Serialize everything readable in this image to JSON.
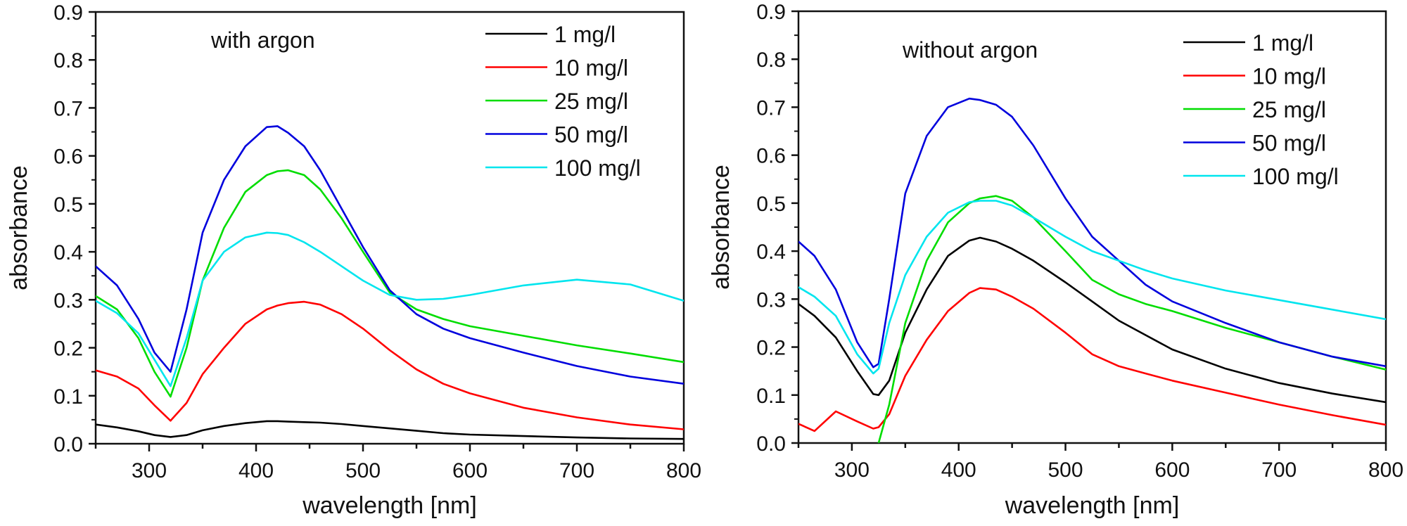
{
  "chart_data": [
    {
      "type": "line",
      "title": "",
      "annotation": "with argon",
      "xlabel": "wavelength [nm]",
      "ylabel": "absorbance",
      "xlim": [
        250,
        800
      ],
      "ylim": [
        0.0,
        0.9
      ],
      "xticks": [
        300,
        400,
        500,
        600,
        700,
        800
      ],
      "xtick_labels": [
        "300",
        "400",
        "500",
        "600",
        "700",
        "800"
      ],
      "yticks": [
        0.0,
        0.1,
        0.2,
        0.3,
        0.4,
        0.5,
        0.6,
        0.7,
        0.8,
        0.9
      ],
      "ytick_labels": [
        "0.0",
        "0.1",
        "0.2",
        "0.3",
        "0.4",
        "0.5",
        "0.6",
        "0.7",
        "0.8",
        "0.9"
      ],
      "grid": false,
      "legend_position": "top-right",
      "x": [
        250,
        270,
        290,
        305,
        320,
        335,
        350,
        370,
        390,
        410,
        420,
        430,
        445,
        460,
        480,
        500,
        525,
        550,
        575,
        600,
        650,
        700,
        750,
        800
      ],
      "series": [
        {
          "name": "1 mg/l",
          "color": "#000000",
          "values": [
            0.04,
            0.034,
            0.026,
            0.018,
            0.014,
            0.018,
            0.028,
            0.037,
            0.043,
            0.047,
            0.047,
            0.046,
            0.045,
            0.044,
            0.041,
            0.037,
            0.032,
            0.027,
            0.022,
            0.019,
            0.016,
            0.013,
            0.011,
            0.01
          ]
        },
        {
          "name": "10 mg/l",
          "color": "#ff0000",
          "values": [
            0.153,
            0.14,
            0.115,
            0.08,
            0.048,
            0.085,
            0.145,
            0.2,
            0.25,
            0.28,
            0.288,
            0.293,
            0.296,
            0.29,
            0.27,
            0.24,
            0.195,
            0.155,
            0.125,
            0.105,
            0.075,
            0.055,
            0.04,
            0.03
          ]
        },
        {
          "name": "25 mg/l",
          "color": "#00dd00",
          "values": [
            0.308,
            0.28,
            0.22,
            0.15,
            0.098,
            0.2,
            0.34,
            0.45,
            0.525,
            0.56,
            0.568,
            0.57,
            0.56,
            0.53,
            0.47,
            0.4,
            0.315,
            0.28,
            0.26,
            0.245,
            0.225,
            0.205,
            0.188,
            0.17
          ]
        },
        {
          "name": "50 mg/l",
          "color": "#0000dd",
          "values": [
            0.37,
            0.33,
            0.26,
            0.19,
            0.15,
            0.28,
            0.44,
            0.55,
            0.62,
            0.66,
            0.662,
            0.648,
            0.62,
            0.57,
            0.49,
            0.41,
            0.32,
            0.27,
            0.24,
            0.22,
            0.19,
            0.162,
            0.14,
            0.125
          ]
        },
        {
          "name": "100 mg/l",
          "color": "#00e5ee",
          "values": [
            0.298,
            0.272,
            0.23,
            0.175,
            0.12,
            0.22,
            0.34,
            0.4,
            0.43,
            0.44,
            0.439,
            0.435,
            0.42,
            0.4,
            0.37,
            0.34,
            0.31,
            0.3,
            0.302,
            0.31,
            0.33,
            0.342,
            0.332,
            0.298
          ]
        }
      ]
    },
    {
      "type": "line",
      "title": "",
      "annotation": "without argon",
      "xlabel": "wavelength [nm]",
      "ylabel": "absorbance",
      "xlim": [
        250,
        800
      ],
      "ylim": [
        0.0,
        0.9
      ],
      "xticks": [
        300,
        400,
        500,
        600,
        700,
        800
      ],
      "xtick_labels": [
        "300",
        "400",
        "500",
        "600",
        "700",
        "800"
      ],
      "yticks": [
        0.0,
        0.1,
        0.2,
        0.3,
        0.4,
        0.5,
        0.6,
        0.7,
        0.8,
        0.9
      ],
      "ytick_labels": [
        "0.0",
        "0.1",
        "0.2",
        "0.3",
        "0.4",
        "0.5",
        "0.6",
        "0.7",
        "0.8",
        "0.9"
      ],
      "grid": false,
      "legend_position": "top-right",
      "x": [
        250,
        265,
        285,
        305,
        320,
        325,
        335,
        350,
        370,
        390,
        410,
        420,
        435,
        450,
        470,
        500,
        525,
        550,
        575,
        600,
        650,
        700,
        750,
        800
      ],
      "series": [
        {
          "name": "1 mg/l",
          "color": "#000000",
          "values": [
            0.29,
            0.265,
            0.22,
            0.15,
            0.102,
            0.1,
            0.13,
            0.23,
            0.32,
            0.39,
            0.422,
            0.428,
            0.42,
            0.405,
            0.38,
            0.335,
            0.295,
            0.255,
            0.225,
            0.195,
            0.155,
            0.125,
            0.103,
            0.085
          ]
        },
        {
          "name": "10 mg/l",
          "color": "#ff0000",
          "values": [
            0.04,
            0.025,
            0.066,
            0.045,
            0.03,
            0.033,
            0.06,
            0.14,
            0.215,
            0.275,
            0.313,
            0.323,
            0.32,
            0.305,
            0.28,
            0.23,
            0.185,
            0.16,
            0.145,
            0.13,
            0.105,
            0.08,
            0.058,
            0.038
          ]
        },
        {
          "name": "25 mg/l",
          "color": "#00dd00",
          "values": [
            null,
            null,
            null,
            null,
            null,
            0.0,
            0.08,
            0.25,
            0.38,
            0.46,
            0.5,
            0.51,
            0.515,
            0.505,
            0.47,
            0.4,
            0.34,
            0.31,
            0.29,
            0.275,
            0.24,
            0.21,
            0.18,
            0.153
          ]
        },
        {
          "name": "50 mg/l",
          "color": "#0000dd",
          "values": [
            0.42,
            0.39,
            0.32,
            0.21,
            0.158,
            0.165,
            0.3,
            0.52,
            0.64,
            0.7,
            0.718,
            0.715,
            0.705,
            0.68,
            0.62,
            0.51,
            0.43,
            0.38,
            0.33,
            0.295,
            0.25,
            0.21,
            0.18,
            0.16
          ]
        },
        {
          "name": "100 mg/l",
          "color": "#00e5ee",
          "values": [
            0.325,
            0.305,
            0.265,
            0.185,
            0.145,
            0.155,
            0.25,
            0.35,
            0.43,
            0.48,
            0.502,
            0.505,
            0.505,
            0.495,
            0.47,
            0.43,
            0.4,
            0.38,
            0.36,
            0.343,
            0.318,
            0.298,
            0.278,
            0.258
          ]
        }
      ]
    }
  ]
}
